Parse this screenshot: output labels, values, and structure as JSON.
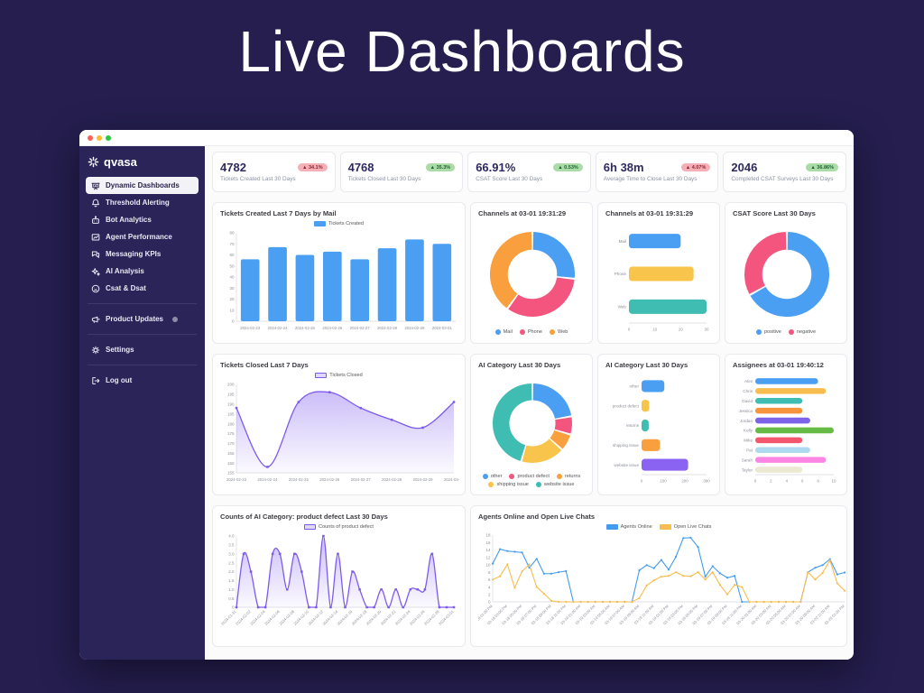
{
  "page": {
    "title": "Live Dashboards"
  },
  "sidebar": {
    "brand": "qvasa",
    "items": [
      {
        "label": "Dynamic Dashboards",
        "icon": "dashboard-icon",
        "active": true
      },
      {
        "label": "Threshold Alerting",
        "icon": "bell-icon"
      },
      {
        "label": "Bot Analytics",
        "icon": "robot-icon"
      },
      {
        "label": "Agent Performance",
        "icon": "performance-chart-icon"
      },
      {
        "label": "Messaging KPIs",
        "icon": "chat-bubbles-icon"
      },
      {
        "label": "AI Analysis",
        "icon": "sparkles-icon"
      },
      {
        "label": "Csat & Dsat",
        "icon": "frown-face-icon"
      }
    ],
    "product_updates": {
      "label": "Product Updates",
      "icon": "megaphone-icon",
      "has_badge_dot": true
    },
    "settings": {
      "label": "Settings",
      "icon": "gear-icon"
    },
    "logout": {
      "label": "Log out",
      "icon": "logout-icon"
    }
  },
  "kpis": [
    {
      "value": "4782",
      "label": "Tickets Created Last 30 Days",
      "delta": "▲ 34.1%",
      "tone": "bad"
    },
    {
      "value": "4768",
      "label": "Tickets Closed Last 30 Days",
      "delta": "▲ 35.3%",
      "tone": "good"
    },
    {
      "value": "66.91%",
      "label": "CSAT Score Last 30 Days",
      "delta": "▲ 0.53%",
      "tone": "good"
    },
    {
      "value": "6h 38m",
      "label": "Average Time to Close Last 30 Days",
      "delta": "▲ 4.07%",
      "tone": "bad"
    },
    {
      "value": "2046",
      "label": "Completed CSAT Surveys Last 30 Days",
      "delta": "▲ 36.86%",
      "tone": "good"
    }
  ],
  "colors": {
    "blue": "#4A9FF3",
    "pink": "#F4557F",
    "orange": "#F99F3E",
    "yellow": "#F8C44B",
    "teal": "#3FBDB3",
    "purple_line": "#7E5BEE",
    "purple_bar": "#8A63F2",
    "green": "#66BB45",
    "sidebar_bg": "#2B2458",
    "page_bg": "#251E4F",
    "badge_good_bg": "#ABDCA8",
    "badge_bad_bg": "#F5AFB6"
  },
  "chart_data": [
    {
      "type": "bar",
      "title": "Tickets Created Last 7 Days by Mail",
      "legend": [
        {
          "label": "Tickets Created",
          "color": "#4A9FF3",
          "style": "solid"
        }
      ],
      "categories": [
        "2024-02-23",
        "2024-02-24",
        "2024-02-25",
        "2024-02-26",
        "2024-02-27",
        "2024-02-28",
        "2024-02-29",
        "2024-03-01"
      ],
      "values": [
        56,
        67,
        60,
        63,
        56,
        66,
        74,
        70
      ],
      "color": "#4A9FF3",
      "ylim": [
        0,
        80
      ],
      "ytick": 10,
      "grid": false,
      "legend_position": "top"
    },
    {
      "type": "donut",
      "title": "Channels at 03-01 19:31:29",
      "slices": [
        {
          "label": "Mail",
          "value": 20,
          "color": "#4A9FF3"
        },
        {
          "label": "Phone",
          "value": 25,
          "color": "#F4557F"
        },
        {
          "label": "Web",
          "value": 30,
          "color": "#F99F3E"
        }
      ],
      "legend": [
        {
          "label": "Mail",
          "color": "#4A9FF3",
          "style": "dot"
        },
        {
          "label": "Phone",
          "color": "#F4557F",
          "style": "dot"
        },
        {
          "label": "Web",
          "color": "#F99F3E",
          "style": "dot"
        }
      ],
      "legend_position": "bottom"
    },
    {
      "type": "hbar",
      "title": "Channels at 03-01 19:31:29",
      "categories": [
        "Mail",
        "Phone",
        "Web"
      ],
      "values": [
        20,
        25,
        30
      ],
      "colors": [
        "#4A9FF3",
        "#F8C44B",
        "#3FBDB3"
      ],
      "xlim": [
        0,
        30
      ],
      "xticks": [
        0,
        10,
        20,
        30
      ],
      "ml": 26
    },
    {
      "type": "donut",
      "title": "CSAT Score Last 30 Days",
      "slices": [
        {
          "label": "positive",
          "value": 66.91,
          "color": "#4A9FF3"
        },
        {
          "label": "negative",
          "value": 33.09,
          "color": "#F4557F"
        }
      ],
      "legend": [
        {
          "label": "positive",
          "color": "#4A9FF3",
          "style": "dot"
        },
        {
          "label": "negative",
          "color": "#F4557F",
          "style": "dot"
        }
      ],
      "legend_position": "bottom"
    },
    {
      "type": "line",
      "title": "Tickets Closed Last 7 Days",
      "legend": [
        {
          "label": "Tickets Closed",
          "color": "#7E5BEE",
          "style": "box"
        }
      ],
      "categories": [
        "2024-02-23",
        "2024-02-24",
        "2024-02-25",
        "2024-02-26",
        "2024-02-27",
        "2024-02-28",
        "2024-02-29",
        "2024-03-01"
      ],
      "values": [
        188,
        158,
        191,
        196,
        188,
        182,
        178,
        191
      ],
      "color": "#7E5BEE",
      "ylim": [
        155,
        200
      ],
      "ytick": 5,
      "area": true,
      "smooth": true,
      "rotate": false,
      "legend_position": "top"
    },
    {
      "type": "donut",
      "title": "AI Category Last 30 Days",
      "slices": [
        {
          "label": "other",
          "value": 105,
          "color": "#4A9FF3"
        },
        {
          "label": "product defect",
          "value": 35,
          "color": "#F4557F"
        },
        {
          "label": "returns",
          "value": 33,
          "color": "#F99F3E"
        },
        {
          "label": "shipping issue",
          "value": 85,
          "color": "#F8C44B"
        },
        {
          "label": "website issue",
          "value": 215,
          "color": "#3FBDB3"
        }
      ],
      "legend": [
        {
          "label": "other",
          "color": "#4A9FF3",
          "style": "dot"
        },
        {
          "label": "product defect",
          "color": "#F4557F",
          "style": "dot"
        },
        {
          "label": "returns",
          "color": "#F99F3E",
          "style": "dot"
        },
        {
          "label": "shipping issue",
          "color": "#F8C44B",
          "style": "dot"
        },
        {
          "label": "website issue",
          "color": "#3FBDB3",
          "style": "dot"
        }
      ],
      "legend_position": "bottom"
    },
    {
      "type": "hbar",
      "title": "AI Category Last 30 Days",
      "categories": [
        "other",
        "product defect",
        "returns",
        "shipping issue",
        "website issue"
      ],
      "values": [
        105,
        35,
        33,
        85,
        215
      ],
      "colors": [
        "#4A9FF3",
        "#F8C44B",
        "#3FBDB3",
        "#F99F3E",
        "#8A63F2"
      ],
      "xlim": [
        0,
        300
      ],
      "xticks": [
        0,
        100,
        200,
        300
      ],
      "ml": 40
    },
    {
      "type": "hbar",
      "title": "Assignees at 03-01 19:40:12",
      "categories": [
        "Alex",
        "Chris",
        "David",
        "Jessica",
        "Jordan",
        "Kelly",
        "Mike",
        "Pat",
        "Sarah",
        "Taylor"
      ],
      "values": [
        8,
        9,
        6,
        6,
        7,
        10,
        6,
        7,
        9,
        6
      ],
      "colors": [
        "#4A9FF3",
        "#F7BD4F",
        "#3FBDB3",
        "#F8943C",
        "#7C63E8",
        "#66BB45",
        "#F4566E",
        "#AEDAF0",
        "#FB86E5",
        "#EBE9D2"
      ],
      "xlim": [
        0,
        10
      ],
      "xticks": [
        0,
        2,
        4,
        6,
        8,
        10
      ],
      "ml": 25
    },
    {
      "type": "line",
      "title": "Counts of AI Category: product defect Last 30 Days",
      "legend": [
        {
          "label": "Counts of product defect",
          "color": "#7E5BEE",
          "style": "box"
        }
      ],
      "values": [
        0,
        3,
        2,
        0,
        0,
        3,
        3,
        1,
        3,
        2,
        0,
        0,
        4,
        0,
        3,
        0,
        2,
        1,
        0,
        0,
        1,
        0,
        1,
        0,
        1,
        1,
        1,
        3,
        0,
        0,
        0
      ],
      "labels": [
        "2024-01-31",
        "2024-02-02",
        "2024-02-04",
        "2024-02-06",
        "2024-02-08",
        "2024-02-10",
        "2024-02-12",
        "2024-02-14",
        "2024-02-16",
        "2024-02-18",
        "2024-02-20",
        "2024-02-22",
        "2024-02-24",
        "2024-02-26",
        "2024-02-28",
        "2024-03-01"
      ],
      "label_every": 2,
      "color": "#7E5BEE",
      "ylim": [
        0,
        4
      ],
      "ytick": 0.5,
      "area": true,
      "smooth": true,
      "rotate": true,
      "legend_position": "top"
    },
    {
      "type": "multiline",
      "title": "Agents Online and Open Live Chats",
      "legend": [
        {
          "label": "Agents Online",
          "color": "#449BF0",
          "style": "solid"
        },
        {
          "label": "Open Live Chats",
          "color": "#F7BD4F",
          "style": "solid"
        }
      ],
      "series": [
        {
          "name": "Agents Online",
          "color": "#449BF0",
          "values": [
            10.3,
            14.2,
            13.7,
            13.5,
            13.3,
            9.2,
            11.6,
            7.6,
            7.6,
            8,
            8.3,
            0,
            0,
            0,
            0,
            0,
            0,
            0,
            0,
            0,
            8.5,
            9.9,
            9.1,
            11.3,
            8.7,
            12.2,
            17.2,
            17.3,
            14.8,
            6.8,
            9.6,
            7.7,
            6.5,
            7,
            0,
            0,
            0,
            0,
            0,
            0,
            0,
            0,
            0,
            8,
            9.2,
            9.9,
            11.5,
            7.4,
            7.9
          ]
        },
        {
          "name": "Open Live Chats",
          "color": "#F7BD4F",
          "values": [
            6,
            6.9,
            10.1,
            3.8,
            8.2,
            10.1,
            4,
            2.2,
            0.3,
            0,
            0,
            0,
            0,
            0,
            0,
            0,
            0,
            0,
            0,
            0,
            1,
            4.4,
            5.8,
            6.8,
            7,
            8,
            7,
            6.9,
            8,
            6,
            8,
            4.6,
            2,
            4.6,
            4,
            0,
            0,
            0,
            0,
            0,
            0,
            0,
            0,
            8,
            6,
            7.8,
            11.2,
            5,
            3
          ]
        }
      ],
      "labels": [
        "03-18 01:00 PM",
        "03-18 03:00 PM",
        "03-18 05:00 PM",
        "03-18 07:00 PM",
        "03-18 09:00 PM",
        "03-18 11:00 PM",
        "03-19 01:00 AM",
        "03-19 03:00 AM",
        "03-19 05:00 AM",
        "03-19 07:00 AM",
        "03-19 09:00 AM",
        "03-19 11:00 AM",
        "03-19 01:00 PM",
        "03-19 03:00 PM",
        "03-19 05:00 PM",
        "03-19 07:00 PM",
        "03-19 09:00 PM",
        "03-19 11:00 PM",
        "03-20 01:00 AM",
        "03-20 03:00 AM",
        "03-20 05:00 AM",
        "03-20 07:00 AM",
        "03-20 09:00 AM",
        "03-20 11:00 AM",
        "03-20 01:00 PM"
      ],
      "label_every": 2,
      "ylim": [
        0,
        18
      ],
      "ytick": 2,
      "rotate": true,
      "legend_position": "top"
    }
  ]
}
